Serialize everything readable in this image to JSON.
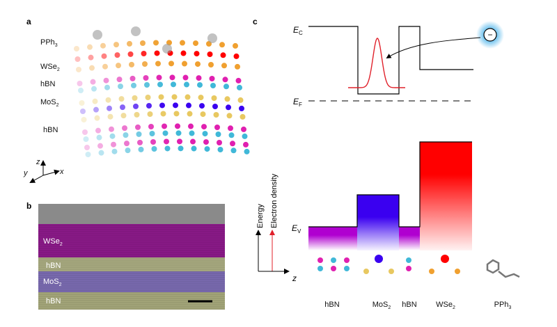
{
  "panels": {
    "a": {
      "label": "a",
      "layers": [
        {
          "main": "PPh",
          "sub": "3"
        },
        {
          "main": "WSe",
          "sub": "2"
        },
        {
          "main": "hBN",
          "sub": ""
        },
        {
          "main": "MoS",
          "sub": "2"
        },
        {
          "main": "hBN",
          "sub": ""
        }
      ],
      "axes": {
        "z": "z",
        "y": "y",
        "x": "x"
      }
    },
    "b": {
      "label": "b",
      "layers": [
        {
          "main": "WSe",
          "sub": "2"
        },
        {
          "main": "hBN",
          "sub": ""
        },
        {
          "main": "MoS",
          "sub": "2"
        },
        {
          "main": "hBN",
          "sub": ""
        }
      ]
    },
    "c": {
      "label": "c",
      "ec": {
        "main": "E",
        "sub": "C"
      },
      "ef": {
        "main": "E",
        "sub": "F"
      },
      "ev": {
        "main": "E",
        "sub": "V"
      },
      "electron_symbol": "−",
      "axis_energy": "Energy",
      "axis_density": "Electron density",
      "axis_z": "z",
      "materials": [
        {
          "main": "hBN",
          "sub": ""
        },
        {
          "main": "MoS",
          "sub": "2"
        },
        {
          "main": "hBN",
          "sub": ""
        },
        {
          "main": "WSe",
          "sub": "2"
        },
        {
          "main": "PPh",
          "sub": "3"
        }
      ]
    }
  },
  "colors": {
    "hbn": "#b000d0",
    "mos2": "#3a00f0",
    "wse2": "#ff0000",
    "density": "#e0202a",
    "boron": "#e020b0",
    "nitrogen": "#40b8d8",
    "sulfur": "#e8c860",
    "selenium": "#f0a030"
  }
}
